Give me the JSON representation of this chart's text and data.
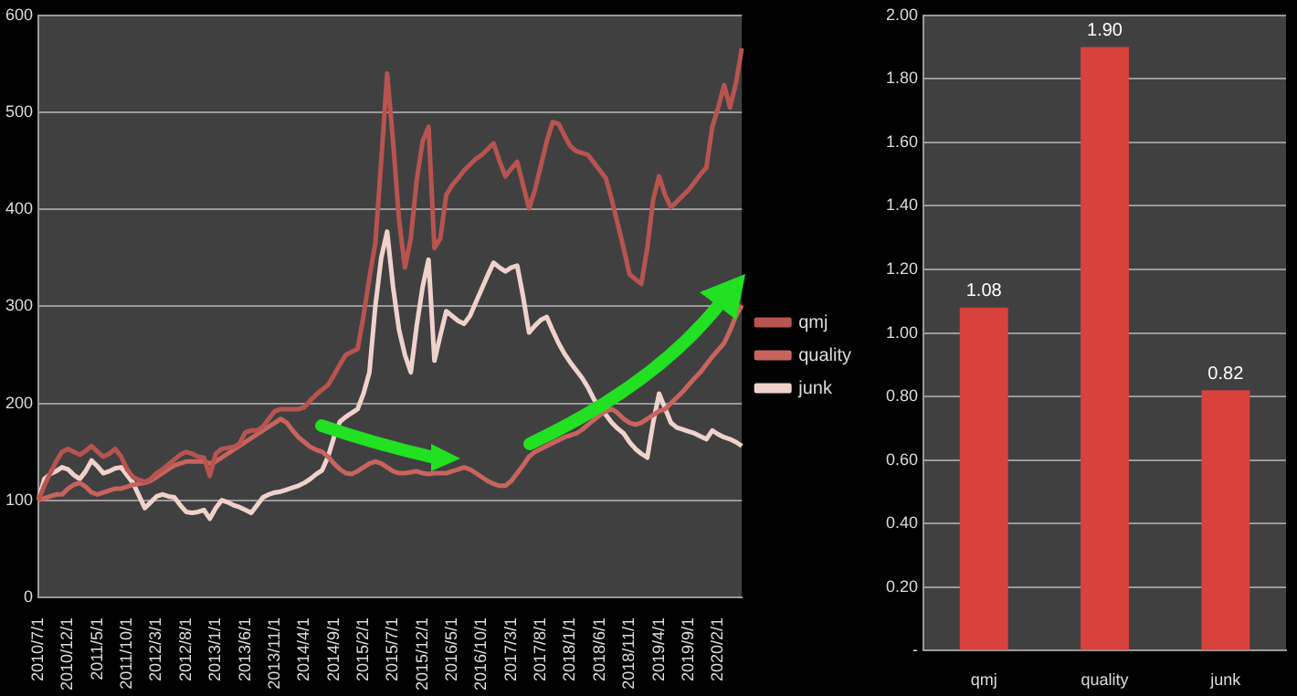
{
  "chart_data": [
    {
      "type": "line",
      "categories": [
        "2010/7/1",
        null,
        null,
        null,
        null,
        "2010/12/1",
        null,
        null,
        null,
        null,
        "2011/5/1",
        null,
        null,
        null,
        null,
        "2011/10/1",
        null,
        null,
        null,
        null,
        "2012/3/1",
        null,
        null,
        null,
        null,
        "2012/8/1",
        null,
        null,
        null,
        null,
        "2013/1/1",
        null,
        null,
        null,
        null,
        "2013/6/1",
        null,
        null,
        null,
        null,
        "2013/11/1",
        null,
        null,
        null,
        null,
        "2014/4/1",
        null,
        null,
        null,
        null,
        "2014/9/1",
        null,
        null,
        null,
        null,
        "2015/2/1",
        null,
        null,
        null,
        null,
        "2015/7/1",
        null,
        null,
        null,
        null,
        "2015/12/1",
        null,
        null,
        null,
        null,
        "2016/5/1",
        null,
        null,
        null,
        null,
        "2016/10/1",
        null,
        null,
        null,
        null,
        "2017/3/1",
        null,
        null,
        null,
        null,
        "2017/8/1",
        null,
        null,
        null,
        null,
        "2018/1/1",
        null,
        null,
        null,
        null,
        "2018/6/1",
        null,
        null,
        null,
        null,
        "2018/11/1",
        null,
        null,
        null,
        null,
        "2019/4/1",
        null,
        null,
        null,
        null,
        "2019/9/1",
        null,
        null,
        null,
        null,
        "2020/2/1",
        null,
        null,
        null,
        null
      ],
      "series": [
        {
          "name": "qmj",
          "color": "#b85450",
          "values": [
            100,
            115,
            128,
            140,
            150,
            153,
            150,
            147,
            151,
            156,
            150,
            145,
            148,
            153,
            145,
            132,
            124,
            121,
            119,
            122,
            128,
            132,
            137,
            142,
            147,
            150,
            148,
            145,
            144,
            125,
            148,
            153,
            154,
            155,
            158,
            170,
            172,
            172,
            176,
            184,
            192,
            194,
            194,
            194,
            194,
            196,
            203,
            209,
            214,
            219,
            229,
            240,
            250,
            253,
            256,
            290,
            330,
            365,
            450,
            540,
            470,
            390,
            340,
            370,
            430,
            470,
            485,
            360,
            370,
            415,
            425,
            432,
            440,
            446,
            452,
            456,
            462,
            468,
            450,
            434,
            442,
            449,
            425,
            401,
            420,
            445,
            470,
            490,
            488,
            476,
            465,
            460,
            458,
            456,
            448,
            440,
            432,
            410,
            385,
            360,
            333,
            328,
            323,
            360,
            410,
            434,
            415,
            402,
            408,
            414,
            420,
            428,
            436,
            443,
            485,
            505,
            528,
            505,
            530,
            566
          ]
        },
        {
          "name": "quality",
          "color": "#c8645e",
          "values": [
            100,
            102,
            104,
            106,
            106,
            112,
            116,
            118,
            114,
            108,
            106,
            108,
            110,
            112,
            112,
            114,
            116,
            117,
            118,
            120,
            124,
            128,
            132,
            136,
            138,
            140,
            140,
            140,
            140,
            138,
            140,
            144,
            148,
            152,
            156,
            160,
            164,
            168,
            172,
            176,
            180,
            184,
            180,
            172,
            165,
            160,
            155,
            152,
            150,
            145,
            138,
            132,
            128,
            127,
            130,
            134,
            138,
            140,
            138,
            134,
            130,
            128,
            128,
            129,
            130,
            128,
            127,
            128,
            128,
            128,
            130,
            132,
            134,
            132,
            128,
            124,
            120,
            117,
            115,
            115,
            120,
            128,
            136,
            145,
            150,
            153,
            156,
            159,
            162,
            165,
            167,
            169,
            173,
            178,
            183,
            188,
            192,
            194,
            190,
            184,
            180,
            178,
            180,
            184,
            188,
            192,
            194,
            200,
            206,
            212,
            219,
            226,
            232,
            240,
            248,
            255,
            262,
            275,
            290,
            301
          ]
        },
        {
          "name": "junk",
          "color": "#f0d2cd",
          "values": [
            100,
            122,
            127,
            130,
            134,
            132,
            126,
            122,
            130,
            141,
            135,
            128,
            130,
            133,
            134,
            126,
            118,
            105,
            92,
            98,
            104,
            106,
            104,
            103,
            95,
            88,
            87,
            88,
            90,
            81,
            92,
            100,
            98,
            95,
            93,
            90,
            87,
            95,
            103,
            106,
            108,
            109,
            111,
            113,
            115,
            118,
            122,
            127,
            131,
            145,
            165,
            181,
            186,
            190,
            194,
            210,
            232,
            300,
            350,
            377,
            320,
            276,
            250,
            232,
            280,
            320,
            348,
            244,
            270,
            295,
            290,
            285,
            282,
            290,
            304,
            318,
            332,
            345,
            340,
            336,
            340,
            342,
            310,
            273,
            280,
            286,
            289,
            275,
            262,
            251,
            242,
            234,
            226,
            216,
            204,
            194,
            188,
            180,
            174,
            169,
            160,
            153,
            148,
            144,
            180,
            210,
            195,
            180,
            175,
            173,
            171,
            169,
            166,
            163,
            172,
            168,
            165,
            163,
            160,
            156
          ]
        }
      ],
      "ylim": [
        0,
        600
      ],
      "yticks": [
        0,
        100,
        200,
        300,
        400,
        500,
        600
      ],
      "grid": "y",
      "legend": "right",
      "marker": "none"
    },
    {
      "type": "bar",
      "categories": [
        "qmj",
        "quality",
        "junk"
      ],
      "values": [
        1.08,
        1.9,
        0.82
      ],
      "value_labels": [
        "1.08",
        "1.90",
        "0.82"
      ],
      "color": "#d9413d",
      "ylim": [
        0,
        2
      ],
      "yticks": [
        {
          "value": 0,
          "label": "-"
        },
        {
          "value": 0.2,
          "label": "0.20"
        },
        {
          "value": 0.4,
          "label": "0.40"
        },
        {
          "value": 0.6,
          "label": "0.60"
        },
        {
          "value": 0.8,
          "label": "0.80"
        },
        {
          "value": 1,
          "label": "1.00"
        },
        {
          "value": 1.2,
          "label": "1.20"
        },
        {
          "value": 1.4,
          "label": "1.40"
        },
        {
          "value": 1.6,
          "label": "1.60"
        },
        {
          "value": 1.8,
          "label": "1.80"
        },
        {
          "value": 2,
          "label": "2.00"
        }
      ],
      "grid": "y"
    }
  ]
}
